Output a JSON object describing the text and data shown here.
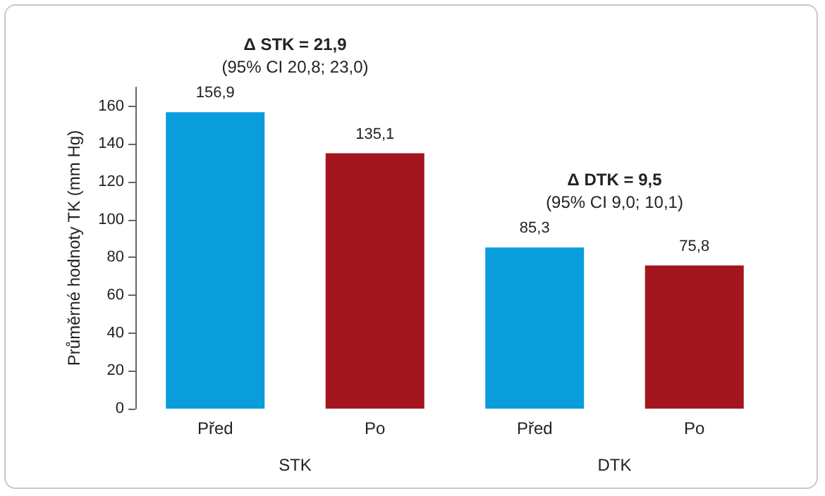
{
  "chart_data": {
    "type": "bar",
    "ylabel": "Průměrné hodnoty TK (mm Hg)",
    "categories": [
      "Před",
      "Po",
      "Před",
      "Po"
    ],
    "values": [
      156.9,
      135.1,
      85.3,
      75.8
    ],
    "value_labels": [
      "156,9",
      "135,1",
      "85,3",
      "75,8"
    ],
    "colors": [
      "#0a9ddb",
      "#a3161f",
      "#0a9ddb",
      "#a3161f"
    ],
    "ylim": [
      0,
      170
    ],
    "yticks": [
      0,
      20,
      40,
      60,
      80,
      100,
      120,
      140,
      160
    ],
    "grid": false,
    "annotations": [
      "Δ STK = 21,9",
      "(95% CI 20,8; 23,0)",
      "Δ DTK = 9,5",
      "(95% CI 9,0; 10,1)",
      "STK",
      "DTK"
    ]
  }
}
